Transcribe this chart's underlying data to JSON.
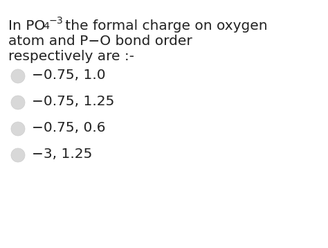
{
  "background_color": "#ffffff",
  "text_color": "#222222",
  "font_size_question": 14.5,
  "font_size_options": 14.5,
  "circle_fill_color": "#d8d8d8",
  "circle_edge_color": "#cccccc",
  "options": [
    "−0.75, 1.0",
    "−0.75, 1.25",
    "−0.75, 0.6",
    "−3, 1.25"
  ]
}
